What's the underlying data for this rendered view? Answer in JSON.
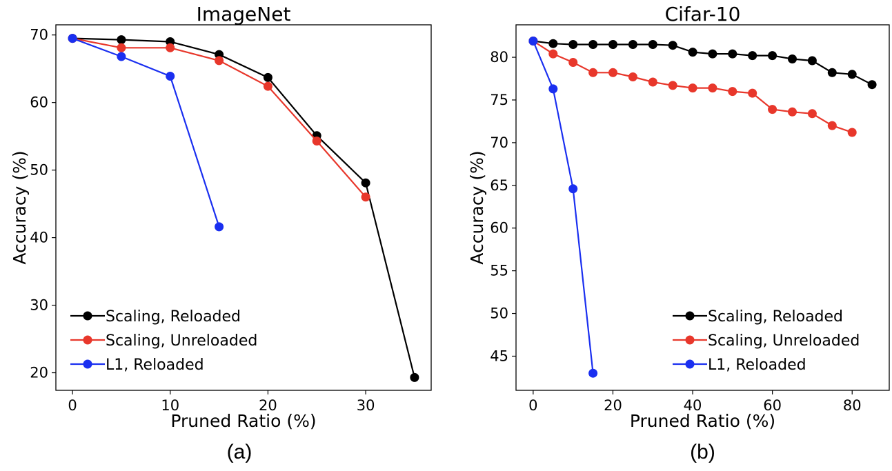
{
  "chart_data": [
    {
      "type": "line",
      "title": "ImageNet",
      "xlabel": "Pruned Ratio (%)",
      "ylabel": "Accuracy (%)",
      "caption": "(a)",
      "xlim": [
        -1.7,
        36.7
      ],
      "ylim": [
        17.4,
        71.5
      ],
      "xticks": [
        0,
        10,
        20,
        30
      ],
      "yticks": [
        20,
        30,
        40,
        50,
        60,
        70
      ],
      "grid": false,
      "legend_position": "lower-left",
      "series": [
        {
          "name": "Scaling, Reloaded",
          "color": "#000000",
          "x": [
            0,
            5,
            10,
            15,
            20,
            25,
            30,
            35
          ],
          "y": [
            69.5,
            69.3,
            69.0,
            67.1,
            63.7,
            55.1,
            48.1,
            19.3
          ]
        },
        {
          "name": "Scaling, Unreloaded",
          "color": "#e8372b",
          "x": [
            0,
            5,
            10,
            15,
            20,
            25,
            30
          ],
          "y": [
            69.5,
            68.1,
            68.1,
            66.2,
            62.4,
            54.3,
            46.0
          ]
        },
        {
          "name": "L1, Reloaded",
          "color": "#1a2ff0",
          "x": [
            0,
            5,
            10,
            15
          ],
          "y": [
            69.5,
            66.8,
            63.9,
            41.6
          ]
        }
      ]
    },
    {
      "type": "line",
      "title": "Cifar-10",
      "xlabel": "Pruned Ratio (%)",
      "ylabel": "Accuracy (%)",
      "caption": "(b)",
      "xlim": [
        -4.3,
        89.3
      ],
      "ylim": [
        41.0,
        83.8
      ],
      "xticks": [
        0,
        20,
        40,
        60,
        80
      ],
      "yticks": [
        45,
        50,
        55,
        60,
        65,
        70,
        75,
        80
      ],
      "grid": false,
      "legend_position": "lower-right",
      "series": [
        {
          "name": "Scaling, Reloaded",
          "color": "#000000",
          "x": [
            0,
            5,
            10,
            15,
            20,
            25,
            30,
            35,
            40,
            45,
            50,
            55,
            60,
            65,
            70,
            75,
            80,
            85
          ],
          "y": [
            81.9,
            81.6,
            81.5,
            81.5,
            81.5,
            81.5,
            81.5,
            81.4,
            80.6,
            80.4,
            80.4,
            80.2,
            80.2,
            79.8,
            79.6,
            78.2,
            78.0,
            76.8
          ]
        },
        {
          "name": "Scaling, Unreloaded",
          "color": "#e8372b",
          "x": [
            0,
            5,
            10,
            15,
            20,
            25,
            30,
            35,
            40,
            45,
            50,
            55,
            60,
            65,
            70,
            75,
            80
          ],
          "y": [
            81.9,
            80.4,
            79.4,
            78.2,
            78.2,
            77.7,
            77.1,
            76.7,
            76.4,
            76.4,
            76.0,
            75.8,
            73.9,
            73.6,
            73.4,
            72.0,
            71.2
          ]
        },
        {
          "name": "L1, Reloaded",
          "color": "#1a2ff0",
          "x": [
            0,
            5,
            10,
            15
          ],
          "y": [
            81.9,
            76.3,
            64.6,
            43.0
          ]
        }
      ]
    }
  ]
}
